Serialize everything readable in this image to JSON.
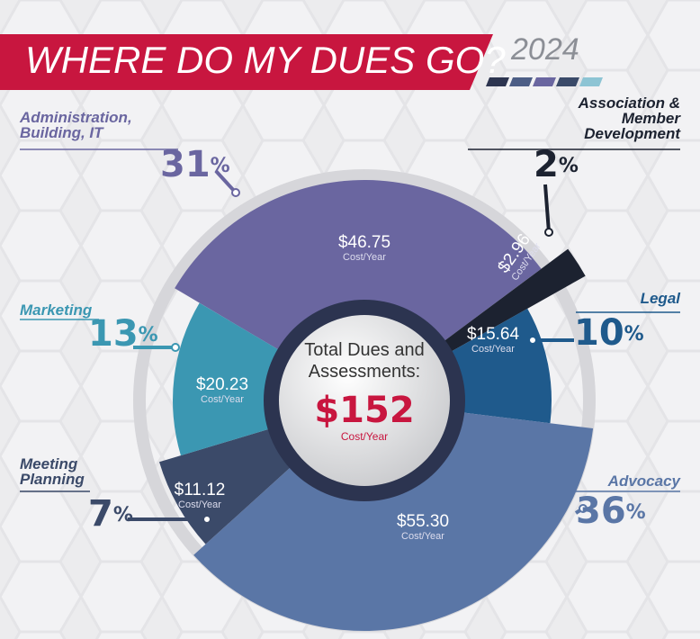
{
  "chart_data": {
    "type": "pie",
    "title": "WHERE DO MY DUES GO?",
    "year": "2024",
    "categories": [
      "Administration, Building, IT",
      "Association & Member Development",
      "Legal",
      "Advocacy",
      "Meeting Planning",
      "Marketing"
    ],
    "values": [
      31,
      2,
      10,
      36,
      7,
      13
    ],
    "percent_sign": "%",
    "costs": [
      46.75,
      2.96,
      15.64,
      55.3,
      11.12,
      20.23
    ],
    "cost_labels": [
      "$46.75",
      "$2.96",
      "$15.64",
      "$55.30",
      "$11.12",
      "$20.23"
    ],
    "cost_unit": "Cost/Year",
    "colors": [
      "#6a66a0",
      "#1c2230",
      "#1f5a8c",
      "#5a76a6",
      "#3b4a69",
      "#3b97b2"
    ],
    "center_label": "Total Dues and Assessments:",
    "total": 152,
    "total_label": "$152"
  }
}
